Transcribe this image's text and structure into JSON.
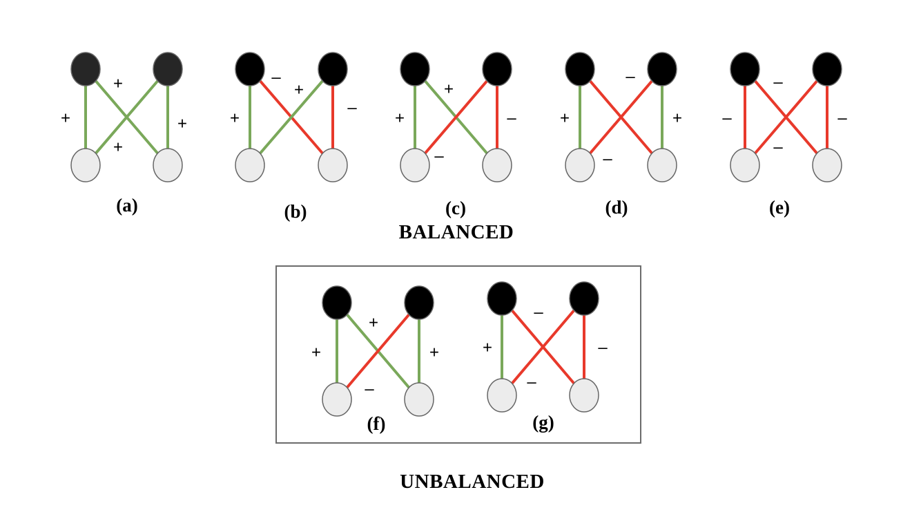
{
  "colors": {
    "positive_edge": "#7aa85a",
    "negative_edge": "#e8392b",
    "top_node_fill": "#000000",
    "top_node_fill_a": "#262626",
    "bottom_node_fill": "#ececec",
    "node_stroke": "#666666"
  },
  "signs": {
    "plus": "+",
    "minus": "–"
  },
  "labels": {
    "balanced": "BALANCED",
    "unbalanced": "UNBALANCED"
  },
  "diagrams": [
    {
      "id": "a",
      "caption": "(a)",
      "group": "balanced",
      "edges": {
        "left": "+",
        "right": "+",
        "cross_tl_br": "+",
        "cross_tr_bl": "+"
      }
    },
    {
      "id": "b",
      "caption": "(b)",
      "group": "balanced",
      "edges": {
        "left": "+",
        "right": "–",
        "cross_tl_br": "–",
        "cross_tr_bl": "+"
      }
    },
    {
      "id": "c",
      "caption": "(c)",
      "group": "balanced",
      "edges": {
        "left": "+",
        "right": "–",
        "cross_tl_br": "+",
        "cross_tr_bl": "–"
      }
    },
    {
      "id": "d",
      "caption": "(d)",
      "group": "balanced",
      "edges": {
        "left": "+",
        "right": "+",
        "cross_tl_br": "–",
        "cross_tr_bl": "–"
      }
    },
    {
      "id": "e",
      "caption": "(e)",
      "group": "balanced",
      "edges": {
        "left": "–",
        "right": "–",
        "cross_tl_br": "–",
        "cross_tr_bl": "–"
      }
    },
    {
      "id": "f",
      "caption": "(f)",
      "group": "unbalanced",
      "edges": {
        "left": "+",
        "right": "+",
        "cross_tl_br": "+",
        "cross_tr_bl": "–"
      }
    },
    {
      "id": "g",
      "caption": "(g)",
      "group": "unbalanced",
      "edges": {
        "left": "+",
        "right": "–",
        "cross_tl_br": "–",
        "cross_tr_bl": "–"
      }
    }
  ]
}
